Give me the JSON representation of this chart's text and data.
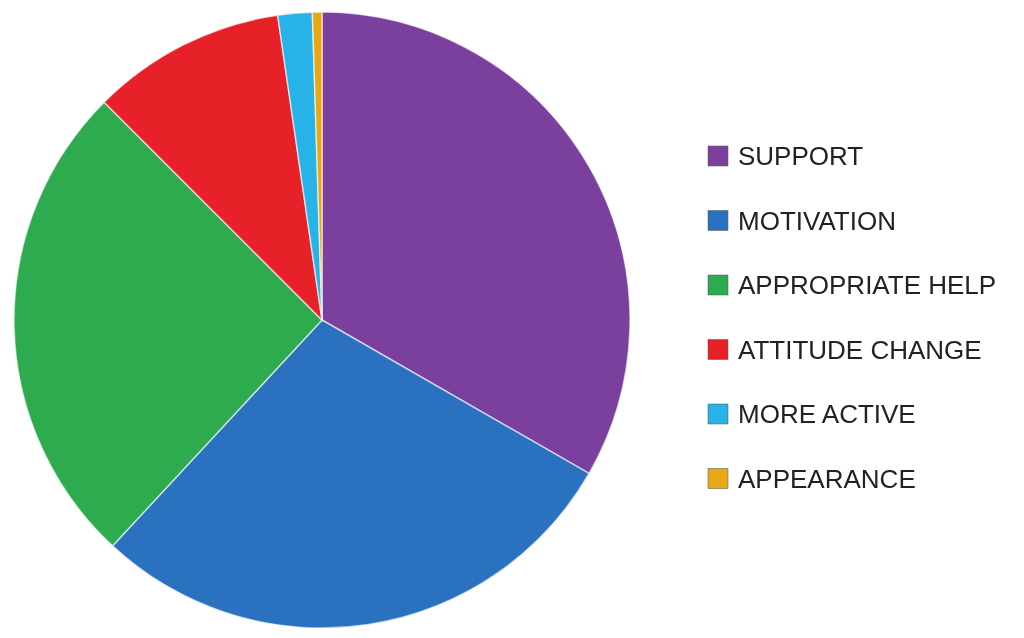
{
  "chart_data": {
    "type": "pie",
    "categories": [
      "SUPPORT",
      "MOTIVATION",
      "APPROPRIATE HELP",
      "ATTITUDE CHANGE",
      "MORE ACTIVE",
      "APPEARANCE"
    ],
    "values": [
      33.3,
      28.6,
      25.6,
      10.2,
      1.8,
      0.5
    ],
    "colors": [
      "#7b3f9e",
      "#2a72c0",
      "#2eaa4f",
      "#e62128",
      "#27b2e8",
      "#e6a817"
    ],
    "legend": "right"
  }
}
